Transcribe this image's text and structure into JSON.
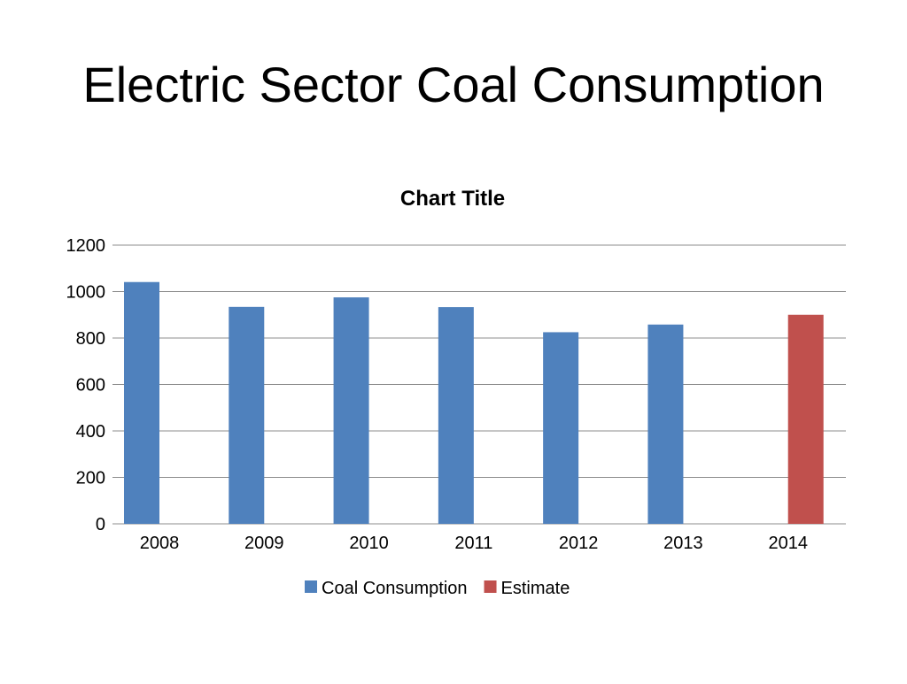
{
  "slide": {
    "title": "Electric Sector Coal Consumption"
  },
  "chart_data": {
    "type": "bar",
    "title": "Chart Title",
    "categories": [
      "2008",
      "2009",
      "2010",
      "2011",
      "2012",
      "2013",
      "2014"
    ],
    "series": [
      {
        "name": "Coal Consumption",
        "color": "#4F81BD",
        "values": [
          1041,
          934,
          975,
          933,
          825,
          858,
          null
        ]
      },
      {
        "name": "Estimate",
        "color": "#C0504D",
        "values": [
          null,
          null,
          null,
          null,
          null,
          null,
          900
        ]
      }
    ],
    "ylim": [
      0,
      1200
    ],
    "yticks": [
      0,
      200,
      400,
      600,
      800,
      1000,
      1200
    ],
    "grid": true,
    "legend_position": "bottom",
    "xlabel": "",
    "ylabel": ""
  }
}
